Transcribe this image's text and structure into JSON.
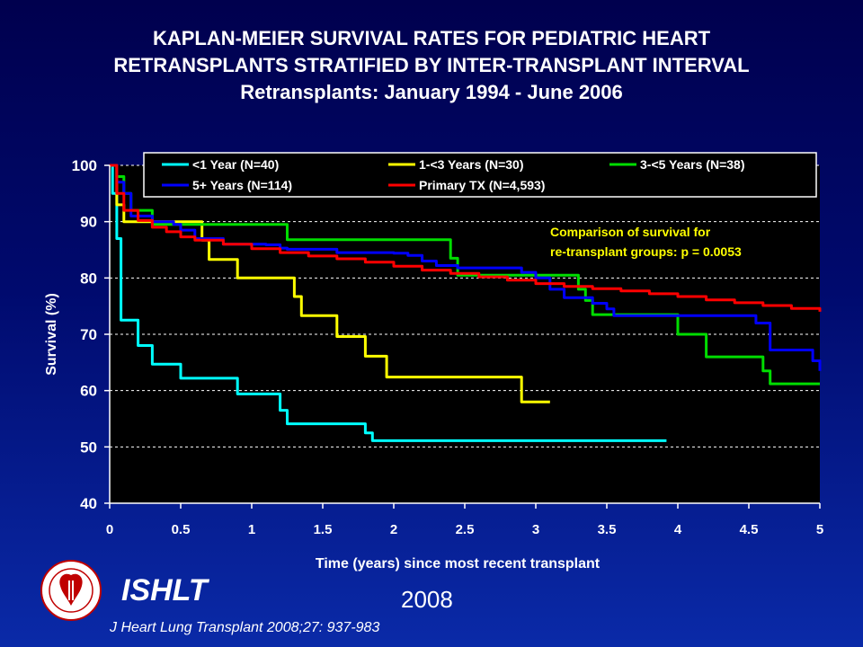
{
  "title_lines": [
    "KAPLAN-MEIER SURVIVAL RATES FOR PEDIATRIC HEART",
    "RETRANSPLANTS STRATIFIED BY INTER-TRANSPLANT INTERVAL",
    "Retransplants: January 1994 - June 2006"
  ],
  "chart_data": {
    "type": "line",
    "step": true,
    "xlabel": "Time (years) since most recent transplant",
    "ylabel": "Survival (%)",
    "xlim": [
      0,
      5
    ],
    "ylim": [
      40,
      100
    ],
    "xticks": [
      0,
      0.5,
      1,
      1.5,
      2,
      2.5,
      3,
      3.5,
      4,
      4.5,
      5
    ],
    "yticks": [
      40,
      50,
      60,
      70,
      80,
      90,
      100
    ],
    "grid": "horizontal-dashed",
    "legend_position": "top",
    "annotation": [
      "Comparison of survival for",
      "re-transplant groups: p = 0.0053"
    ],
    "annotation_color": "#ffff00",
    "series": [
      {
        "name": "<1 Year (N=40)",
        "color": "#00ffff",
        "x": [
          0,
          0.02,
          0.05,
          0.08,
          0.2,
          0.3,
          0.4,
          0.5,
          0.6,
          0.75,
          0.85,
          0.9,
          1.05,
          1.1,
          1.2,
          1.25,
          1.75,
          1.8,
          1.85,
          3.92
        ],
        "y": [
          100,
          95,
          87,
          72.5,
          68,
          64.7,
          64.7,
          62.2,
          62.2,
          62.2,
          62.2,
          59.4,
          59.4,
          59.4,
          56.5,
          54.1,
          54.1,
          52.5,
          51.1,
          51.1
        ]
      },
      {
        "name": "1-<3 Years (N=30)",
        "color": "#ffff00",
        "x": [
          0,
          0.05,
          0.1,
          0.55,
          0.65,
          0.7,
          0.8,
          0.9,
          1.2,
          1.25,
          1.3,
          1.35,
          1.55,
          1.6,
          1.65,
          1.75,
          1.8,
          1.85,
          1.9,
          1.95,
          2.0,
          2.85,
          2.9,
          3.1
        ],
        "y": [
          100,
          93,
          90,
          90,
          86.7,
          83.3,
          83.3,
          80,
          80,
          80,
          76.7,
          73.3,
          73.3,
          69.6,
          69.6,
          69.6,
          66.1,
          66.1,
          66.1,
          62.4,
          62.4,
          62.4,
          58,
          58
        ]
      },
      {
        "name": "3-<5 Years (N=38)",
        "color": "#00dd00",
        "x": [
          0,
          0.05,
          0.1,
          0.15,
          0.25,
          0.3,
          0.6,
          1.15,
          1.25,
          2.35,
          2.4,
          2.45,
          3.25,
          3.3,
          3.35,
          3.4,
          3.7,
          3.75,
          3.95,
          4.0,
          4.05,
          4.1,
          4.2,
          4.55,
          4.6,
          4.65,
          5.0
        ],
        "y": [
          100,
          98,
          95,
          92,
          92,
          89.5,
          89.5,
          89.5,
          86.8,
          86.8,
          83.5,
          80.5,
          80.5,
          78,
          76,
          73.5,
          73.5,
          73.5,
          73.5,
          70,
          70,
          70,
          66,
          66,
          63.5,
          61.2,
          61.2
        ]
      },
      {
        "name": "5+ Years (N=114)",
        "color": "#0000ff",
        "x": [
          0,
          0.05,
          0.1,
          0.15,
          0.3,
          0.45,
          0.5,
          0.6,
          0.8,
          1.1,
          1.2,
          1.25,
          1.55,
          1.6,
          1.75,
          2.0,
          2.1,
          2.2,
          2.3,
          2.45,
          2.9,
          3.0,
          3.1,
          3.2,
          3.3,
          3.4,
          3.5,
          3.55,
          4.0,
          4.5,
          4.55,
          4.65,
          4.8,
          4.95,
          5.0
        ],
        "y": [
          100,
          97,
          95,
          91,
          90,
          89.5,
          88.5,
          87,
          86,
          85.9,
          85.3,
          85.1,
          85.1,
          84.5,
          84.5,
          84.4,
          84,
          83,
          82.2,
          81.8,
          81,
          80,
          78,
          76.5,
          76.5,
          75.5,
          74.5,
          73.3,
          73.3,
          73.3,
          72,
          67.2,
          67.2,
          65.3,
          63.5
        ]
      },
      {
        "name": "Primary TX (N=4,593)",
        "color": "#ff0000",
        "x": [
          0,
          0.05,
          0.1,
          0.2,
          0.3,
          0.4,
          0.5,
          0.6,
          0.8,
          1.0,
          1.2,
          1.4,
          1.6,
          1.8,
          2.0,
          2.2,
          2.4,
          2.6,
          2.8,
          3.0,
          3.2,
          3.4,
          3.6,
          3.8,
          4.0,
          4.2,
          4.4,
          4.6,
          4.8,
          5.0
        ],
        "y": [
          100,
          95,
          92,
          90.2,
          89,
          88.2,
          87.3,
          86.7,
          86,
          85.2,
          84.5,
          83.9,
          83.4,
          82.8,
          82.1,
          81.4,
          80.8,
          80.2,
          79.6,
          79,
          78.5,
          78.1,
          77.7,
          77.2,
          76.7,
          76.1,
          75.6,
          75.1,
          74.6,
          74
        ]
      }
    ]
  },
  "footer": {
    "org": "ISHLT",
    "year": "2008",
    "citation": "J Heart Lung Transplant 2008;27: 937-983",
    "logo_text": "INTERNATIONAL SOCIETY FOR HEART & LUNG TRANSPLANTATION"
  }
}
